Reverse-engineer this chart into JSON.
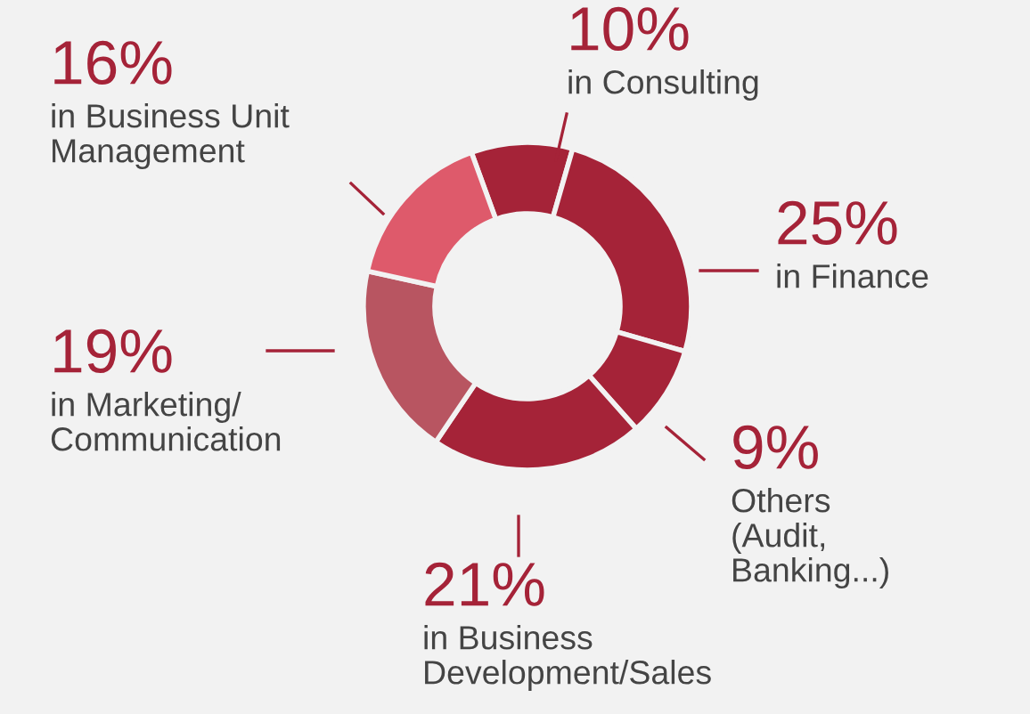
{
  "chart_data": {
    "type": "donut",
    "categories": [
      "in Consulting",
      "in Finance",
      "Others\n(Audit,\nBanking...)",
      "in Business\nDevelopment/Sales",
      "in Marketing/\nCommunication",
      "in Business Unit\nManagement"
    ],
    "values": [
      10,
      25,
      9,
      21,
      19,
      16
    ],
    "value_labels": [
      "10%",
      "25%",
      "9%",
      "21%",
      "19%",
      "16%"
    ],
    "colors": [
      "#a52338",
      "#a52338",
      "#a52338",
      "#a52338",
      "#b85561",
      "#de5a6b"
    ],
    "legend": false
  }
}
